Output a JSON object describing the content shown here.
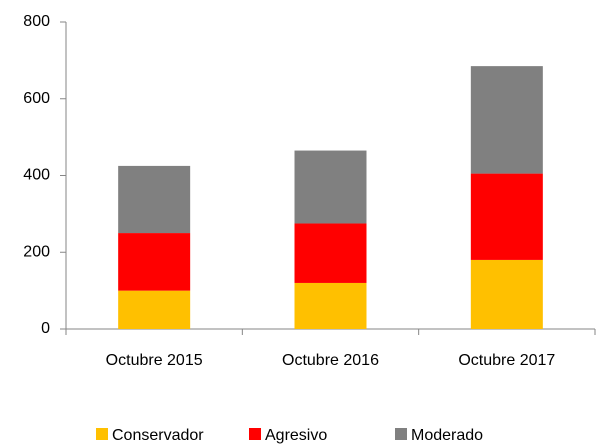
{
  "chart_data": {
    "type": "stacked_bar",
    "categories": [
      "Octubre 2015",
      "Octubre 2016",
      "Octubre 2017"
    ],
    "series": [
      {
        "name": "Conservador",
        "color": "#ffc000",
        "values": [
          100,
          120,
          180
        ]
      },
      {
        "name": "Agresivo",
        "color": "#ff0000",
        "values": [
          150,
          155,
          225
        ]
      },
      {
        "name": "Moderado",
        "color": "#808080",
        "values": [
          175,
          190,
          280
        ]
      }
    ],
    "ylim": [
      0,
      800
    ],
    "yticks": [
      0,
      200,
      400,
      600,
      800
    ],
    "grid": false,
    "legend": "bottom"
  }
}
